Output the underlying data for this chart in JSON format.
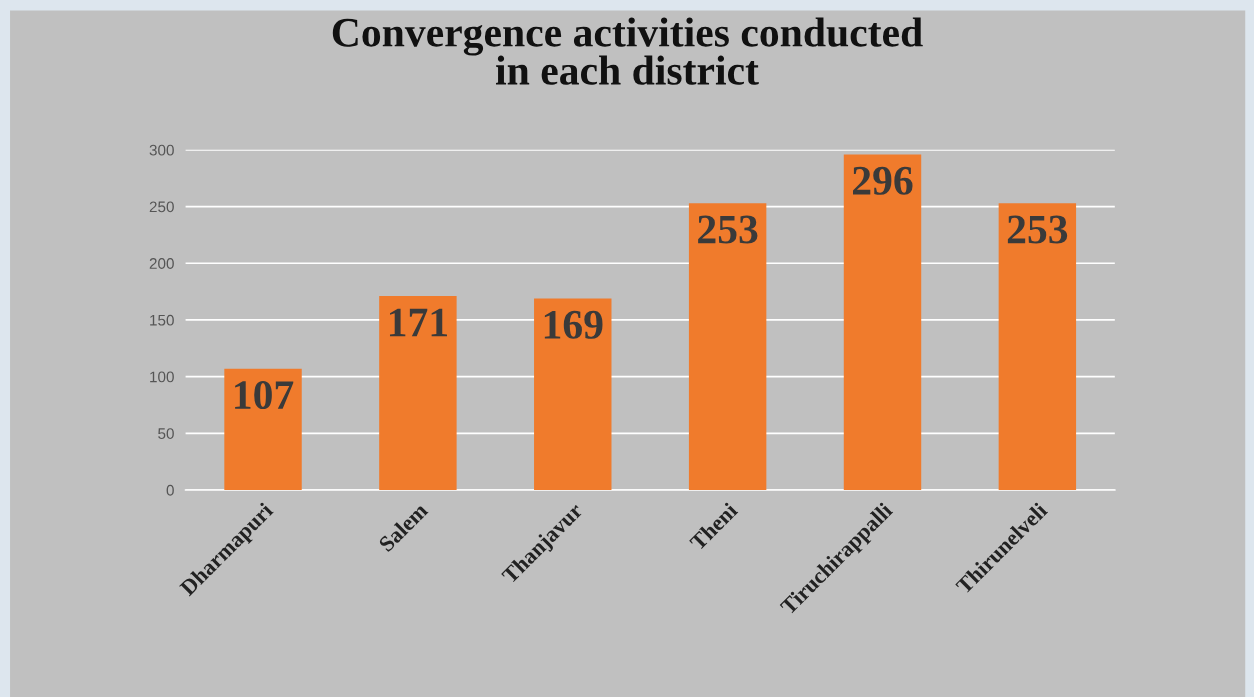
{
  "chart_data": {
    "type": "bar",
    "title": "Convergence activities conducted\nin each district",
    "categories": [
      "Dharmapuri",
      "Salem",
      "Thanjavur",
      "Theni",
      "Tiruchirappalli",
      "Thirunelveli"
    ],
    "values": [
      107,
      171,
      169,
      253,
      296,
      253
    ],
    "color": "#f07b2c",
    "ylim": [
      0,
      300
    ],
    "yticks": [
      0,
      50,
      100,
      150,
      200,
      250,
      300
    ],
    "grid": "y",
    "data_labels": true
  }
}
